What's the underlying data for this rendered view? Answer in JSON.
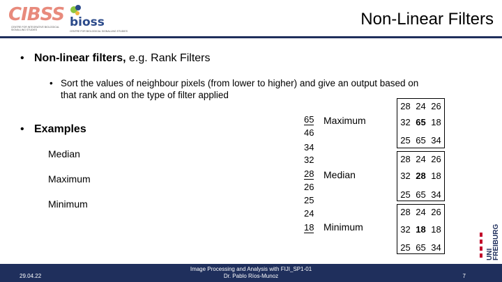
{
  "header": {
    "title": "Non-Linear Filters",
    "logo_cibss": {
      "word": "CIBSS",
      "subtitle": "CENTRE FOR INTEGRATIVE BIOLOGICAL SIGNALLING STUDIES"
    },
    "logo_bioss": {
      "word": "bioss",
      "subtitle": "CENTRE FOR BIOLOGICAL SIGNALLING STUDIES"
    }
  },
  "content": {
    "bullet1_bold": "Non-linear filters,",
    "bullet1_rest": " e.g. Rank Filters",
    "sub_bullet": "Sort the values of neighbour pixels (from lower to higher) and give an output based on that rank and on the type of filter applied",
    "bullet2": "Examples",
    "examples": [
      "Median",
      "Maximum",
      "Minimum"
    ],
    "bullet_char": "•",
    "sub_bullet_char": "•"
  },
  "sorted_values": [
    "65",
    "46",
    "34",
    "32",
    "28",
    "26",
    "25",
    "24",
    "18"
  ],
  "filters": [
    {
      "label": "Maximum",
      "rows": [
        [
          "28",
          "24",
          "26"
        ],
        [
          "32",
          "65",
          "18"
        ],
        [
          "25",
          "65",
          "34"
        ]
      ]
    },
    {
      "label": "Median",
      "rows": [
        [
          "28",
          "24",
          "26"
        ],
        [
          "32",
          "28",
          "18"
        ],
        [
          "25",
          "65",
          "34"
        ]
      ]
    },
    {
      "label": "Minimum",
      "rows": [
        [
          "28",
          "24",
          "26"
        ],
        [
          "32",
          "18",
          "18"
        ],
        [
          "25",
          "65",
          "34"
        ]
      ]
    }
  ],
  "footer": {
    "date": "29.04.22",
    "course": "Image Processing and Analysis with FIJI_SP1-01",
    "author": "Dr. Pablo Ríos-Munoz",
    "page": "7"
  },
  "uni_logo": {
    "line1": "UNI",
    "line2": "FREIBURG"
  },
  "colors": {
    "navy": "#1f2f5c",
    "cibss_coral": "#e88a7c",
    "bioss_blue": "#2b4a8a"
  }
}
